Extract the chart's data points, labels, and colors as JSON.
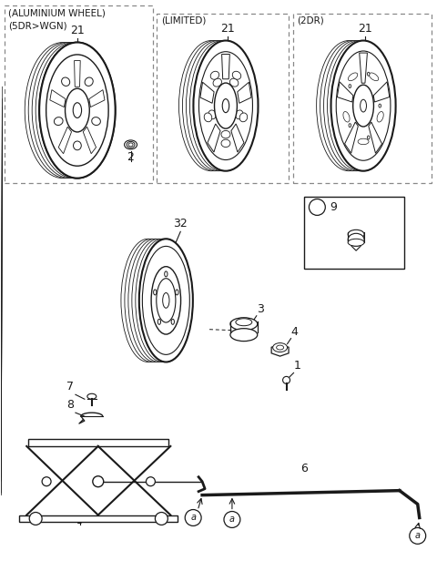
{
  "bg_color": "#ffffff",
  "line_color": "#1a1a1a",
  "dashed_color": "#888888",
  "labels": {
    "box1_title1": "(ALUMINIUM WHEEL)",
    "box1_title2": "(5DR>WGN)",
    "box2_title": "(LIMITED)",
    "box3_title": "(2DR)",
    "label_a": "a"
  },
  "figsize": [
    4.8,
    6.16
  ],
  "dpi": 100
}
